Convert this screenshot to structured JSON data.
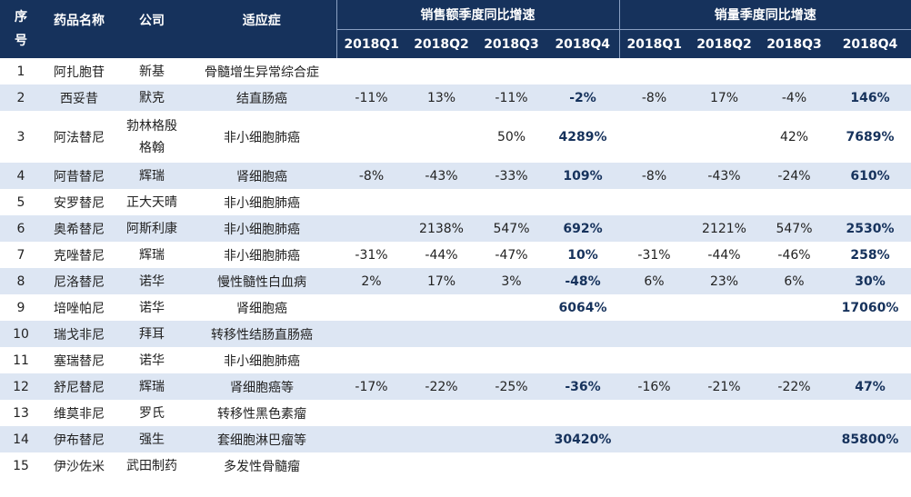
{
  "header": {
    "seq_label": "序\n号",
    "drug_label": "药品名称",
    "company_label": "公司",
    "indication_label": "适应症",
    "sales_group_label": "销售额季度同比增速",
    "volume_group_label": "销量季度同比增速",
    "quarters": [
      "2018Q1",
      "2018Q2",
      "2018Q3",
      "2018Q4"
    ]
  },
  "rows": [
    {
      "seq": "1",
      "drug": "阿扎胞苷",
      "company": "新基",
      "indication": "骨髓增生异常综合症",
      "sales": [
        "",
        "",
        "",
        ""
      ],
      "volume": [
        "",
        "",
        "",
        ""
      ]
    },
    {
      "seq": "2",
      "drug": "西妥昔",
      "company": "默克",
      "indication": "结直肠癌",
      "sales": [
        "-11%",
        "13%",
        "-11%",
        "-2%"
      ],
      "volume": [
        "-8%",
        "17%",
        "-4%",
        "146%"
      ]
    },
    {
      "seq": "3",
      "drug": "阿法替尼",
      "company": "勃林格殷格翰",
      "indication": "非小细胞肺癌",
      "sales": [
        "",
        "",
        "50%",
        "4289%"
      ],
      "volume": [
        "",
        "",
        "42%",
        "7689%"
      ]
    },
    {
      "seq": "4",
      "drug": "阿昔替尼",
      "company": "辉瑞",
      "indication": "肾细胞癌",
      "sales": [
        "-8%",
        "-43%",
        "-33%",
        "109%"
      ],
      "volume": [
        "-8%",
        "-43%",
        "-24%",
        "610%"
      ]
    },
    {
      "seq": "5",
      "drug": "安罗替尼",
      "company": "正大天晴",
      "indication": "非小细胞肺癌",
      "sales": [
        "",
        "",
        "",
        ""
      ],
      "volume": [
        "",
        "",
        "",
        ""
      ]
    },
    {
      "seq": "6",
      "drug": "奥希替尼",
      "company": "阿斯利康",
      "indication": "非小细胞肺癌",
      "sales": [
        "",
        "2138%",
        "547%",
        "692%"
      ],
      "volume": [
        "",
        "2121%",
        "547%",
        "2530%"
      ]
    },
    {
      "seq": "7",
      "drug": "克唑替尼",
      "company": "辉瑞",
      "indication": "非小细胞肺癌",
      "sales": [
        "-31%",
        "-44%",
        "-47%",
        "10%"
      ],
      "volume": [
        "-31%",
        "-44%",
        "-46%",
        "258%"
      ]
    },
    {
      "seq": "8",
      "drug": "尼洛替尼",
      "company": "诺华",
      "indication": "慢性髓性白血病",
      "sales": [
        "2%",
        "17%",
        "3%",
        "-48%"
      ],
      "volume": [
        "6%",
        "23%",
        "6%",
        "30%"
      ]
    },
    {
      "seq": "9",
      "drug": "培唑帕尼",
      "company": "诺华",
      "indication": "肾细胞癌",
      "sales": [
        "",
        "",
        "",
        "6064%"
      ],
      "volume": [
        "",
        "",
        "",
        "17060%"
      ]
    },
    {
      "seq": "10",
      "drug": "瑞戈非尼",
      "company": "拜耳",
      "indication": "转移性结肠直肠癌",
      "sales": [
        "",
        "",
        "",
        ""
      ],
      "volume": [
        "",
        "",
        "",
        ""
      ]
    },
    {
      "seq": "11",
      "drug": "塞瑞替尼",
      "company": "诺华",
      "indication": "非小细胞肺癌",
      "sales": [
        "",
        "",
        "",
        ""
      ],
      "volume": [
        "",
        "",
        "",
        ""
      ]
    },
    {
      "seq": "12",
      "drug": "舒尼替尼",
      "company": "辉瑞",
      "indication": "肾细胞癌等",
      "sales": [
        "-17%",
        "-22%",
        "-25%",
        "-36%"
      ],
      "volume": [
        "-16%",
        "-21%",
        "-22%",
        "47%"
      ]
    },
    {
      "seq": "13",
      "drug": "维莫非尼",
      "company": "罗氏",
      "indication": "转移性黑色素瘤",
      "sales": [
        "",
        "",
        "",
        ""
      ],
      "volume": [
        "",
        "",
        "",
        ""
      ]
    },
    {
      "seq": "14",
      "drug": "伊布替尼",
      "company": "强生",
      "indication": "套细胞淋巴瘤等",
      "sales": [
        "",
        "",
        "",
        "30420%"
      ],
      "volume": [
        "",
        "",
        "",
        "85800%"
      ]
    },
    {
      "seq": "15",
      "drug": "伊沙佐米",
      "company": "武田制药",
      "indication": "多发性骨髓瘤",
      "sales": [
        "",
        "",
        "",
        ""
      ],
      "volume": [
        "",
        "",
        "",
        ""
      ]
    }
  ]
}
